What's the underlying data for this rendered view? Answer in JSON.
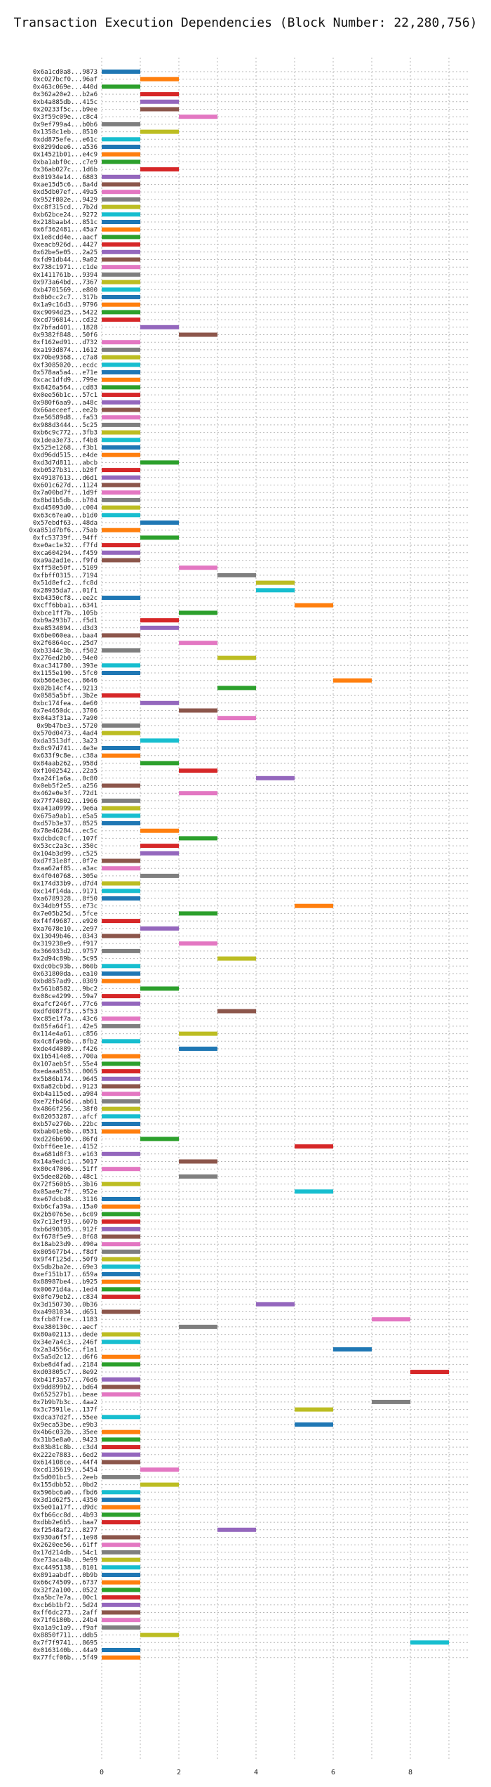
{
  "chart_data": {
    "type": "gantt",
    "title": "Transaction Execution Dependencies (Block Number: 22,280,756)",
    "xlabel": "",
    "ylabel": "",
    "xlim": [
      0,
      9.5
    ],
    "x_ticks": [
      0,
      2,
      4,
      6,
      8
    ],
    "grid": true,
    "colors": [
      "#1f77b4",
      "#ff7f0e",
      "#2ca02c",
      "#d62728",
      "#9467bd",
      "#8c564b",
      "#e377c2",
      "#7f7f7f",
      "#bcbd22",
      "#17becf"
    ],
    "transactions": [
      {
        "label": "0x6a1cd0a8...9873",
        "start": 0
      },
      {
        "label": "0xc027bcf0...96af",
        "start": 1
      },
      {
        "label": "0x463c069e...440d",
        "start": 0
      },
      {
        "label": "0x362a20e2...b2a6",
        "start": 1
      },
      {
        "label": "0xb4a885db...415c",
        "start": 1
      },
      {
        "label": "0x20233f5c...b9ee",
        "start": 1
      },
      {
        "label": "0x3f59c09e...c8c4",
        "start": 2
      },
      {
        "label": "0x9ef799a4...b0b6",
        "start": 0
      },
      {
        "label": "0x1358c1eb...8510",
        "start": 1
      },
      {
        "label": "0xdd875efe...e61c",
        "start": 0
      },
      {
        "label": "0x0299dee6...a536",
        "start": 0
      },
      {
        "label": "0x14521b01...e4c9",
        "start": 0
      },
      {
        "label": "0xba1abf0c...c7e9",
        "start": 0
      },
      {
        "label": "0x36ab027c...1d6b",
        "start": 1
      },
      {
        "label": "0x01934e14...6883",
        "start": 0
      },
      {
        "label": "0xae15d5c6...8a4d",
        "start": 0
      },
      {
        "label": "0xd5db07ef...49a5",
        "start": 0
      },
      {
        "label": "0x952f802e...9429",
        "start": 0
      },
      {
        "label": "0xc8f315cd...7b2d",
        "start": 0
      },
      {
        "label": "0xb62bce24...9272",
        "start": 0
      },
      {
        "label": "0x218baab4...851c",
        "start": 0
      },
      {
        "label": "0x6f362481...45a7",
        "start": 0
      },
      {
        "label": "0x1e8cdd4e...aacf",
        "start": 0
      },
      {
        "label": "0xeacb926d...4427",
        "start": 0
      },
      {
        "label": "0x62be5e05...2a25",
        "start": 0
      },
      {
        "label": "0xfd91db44...9a02",
        "start": 0
      },
      {
        "label": "0x738c1971...c1de",
        "start": 0
      },
      {
        "label": "0x1411761b...9394",
        "start": 0
      },
      {
        "label": "0x973a64bd...7367",
        "start": 0
      },
      {
        "label": "0xb4701569...e800",
        "start": 0
      },
      {
        "label": "0x0b0cc2c7...317b",
        "start": 0
      },
      {
        "label": "0x1a9c16d3...9796",
        "start": 0
      },
      {
        "label": "0xc9094d25...5422",
        "start": 0
      },
      {
        "label": "0xcd796814...cd32",
        "start": 0
      },
      {
        "label": "0x7bfad401...1828",
        "start": 1
      },
      {
        "label": "0x9382f848...50f6",
        "start": 2
      },
      {
        "label": "0xf162ed91...d732",
        "start": 0
      },
      {
        "label": "0xa193d874...1612",
        "start": 0
      },
      {
        "label": "0x70be9368...c7a8",
        "start": 0
      },
      {
        "label": "0xf3085020...ecdc",
        "start": 0
      },
      {
        "label": "0x578aa5a4...e71e",
        "start": 0
      },
      {
        "label": "0xcac1dfd9...799e",
        "start": 0
      },
      {
        "label": "0x8426a564...cd83",
        "start": 0
      },
      {
        "label": "0x0ee56b1c...57c1",
        "start": 0
      },
      {
        "label": "0x980f6aa9...a48c",
        "start": 0
      },
      {
        "label": "0x66aeceef...ee2b",
        "start": 0
      },
      {
        "label": "0xe56589d8...fa53",
        "start": 0
      },
      {
        "label": "0x988d3444...5c25",
        "start": 0
      },
      {
        "label": "0xb6c9c772...3fb3",
        "start": 0
      },
      {
        "label": "0x1dea3e73...f4b8",
        "start": 0
      },
      {
        "label": "0x525e1268...f3b1",
        "start": 0
      },
      {
        "label": "0xd96dd515...e4de",
        "start": 0
      },
      {
        "label": "0xd3d7d811...abcb",
        "start": 1
      },
      {
        "label": "0xb0527b31...b20f",
        "start": 0
      },
      {
        "label": "0x49187613...d6d1",
        "start": 0
      },
      {
        "label": "0x601c627d...1124",
        "start": 0
      },
      {
        "label": "0x7a00bd7f...1d9f",
        "start": 0
      },
      {
        "label": "0x8bd1b5db...b704",
        "start": 0
      },
      {
        "label": "0xd45093d0...c004",
        "start": 0
      },
      {
        "label": "0x63c67ea0...b1d0",
        "start": 0
      },
      {
        "label": "0x57ebdf63...48da",
        "start": 1
      },
      {
        "label": "0xa851d7bf6...75ab",
        "start": 0
      },
      {
        "label": "0xfc53739f...94ff",
        "start": 1
      },
      {
        "label": "0xe0ac1e32...f7fd",
        "start": 0
      },
      {
        "label": "0xca604294...f459",
        "start": 0
      },
      {
        "label": "0xa9a2ad1e...f9fd",
        "start": 0
      },
      {
        "label": "0xff58e50f...5109",
        "start": 2
      },
      {
        "label": "0xfbff0315...7194",
        "start": 3
      },
      {
        "label": "0x51d8efc2...fc8d",
        "start": 4
      },
      {
        "label": "0x28935da7...01f1",
        "start": 4
      },
      {
        "label": "0xb4350cf8...ee2c",
        "start": 0
      },
      {
        "label": "0xcff6bba1...6341",
        "start": 5
      },
      {
        "label": "0xbce1ff7b...105b",
        "start": 2
      },
      {
        "label": "0xb9a293b7...f5d1",
        "start": 1
      },
      {
        "label": "0xe8534894...d3d3",
        "start": 1
      },
      {
        "label": "0x6be060ea...baa4",
        "start": 0
      },
      {
        "label": "0x2f6864ec...25d7",
        "start": 2
      },
      {
        "label": "0xb3344c3b...f502",
        "start": 0
      },
      {
        "label": "0x276ed2b0...94e0",
        "start": 3
      },
      {
        "label": "0xac341780...393e",
        "start": 0
      },
      {
        "label": "0x1155e190...5fc0",
        "start": 0
      },
      {
        "label": "0xb566e3ec...8646",
        "start": 6
      },
      {
        "label": "0x02b14cf4...9213",
        "start": 3
      },
      {
        "label": "0x0585a5bf...3b2e",
        "start": 0
      },
      {
        "label": "0xbc174fea...4e60",
        "start": 1
      },
      {
        "label": "0x7e4650dc...3706",
        "start": 2
      },
      {
        "label": "0x04a3f31a...7a90",
        "start": 3
      },
      {
        "label": "0x9b47be3...5720",
        "start": 0
      },
      {
        "label": "0x570d0473...4ad4",
        "start": 0
      },
      {
        "label": "0xda3513df...3a23",
        "start": 1
      },
      {
        "label": "0x8c97d741...4e3e",
        "start": 0
      },
      {
        "label": "0x633f9c8e...c38a",
        "start": 0
      },
      {
        "label": "0x84aab262...958d",
        "start": 1
      },
      {
        "label": "0xf1002542...22a5",
        "start": 2
      },
      {
        "label": "0xa24f1a6a...0c80",
        "start": 4
      },
      {
        "label": "0x0eb5f2e5...a256",
        "start": 0
      },
      {
        "label": "0x462e0e3f...72d1",
        "start": 2
      },
      {
        "label": "0x77f74802...1966",
        "start": 0
      },
      {
        "label": "0xa41a0999...9e6a",
        "start": 0
      },
      {
        "label": "0x675a9ab1...e5a5",
        "start": 0
      },
      {
        "label": "0xd57b3e37...8525",
        "start": 0
      },
      {
        "label": "0x78e46284...ec5c",
        "start": 1
      },
      {
        "label": "0xdcbdc0cf...107f",
        "start": 2
      },
      {
        "label": "0x53cc2a3c...350c",
        "start": 1
      },
      {
        "label": "0x104b3d99...c525",
        "start": 1
      },
      {
        "label": "0xd7f31e8f...0f7e",
        "start": 0
      },
      {
        "label": "0xaa62af85...a3ac",
        "start": 0
      },
      {
        "label": "0x4f040768...305e",
        "start": 1
      },
      {
        "label": "0x174d33b9...d7d4",
        "start": 0
      },
      {
        "label": "0xc14f14da...9171",
        "start": 0
      },
      {
        "label": "0xa6789328...8f50",
        "start": 0
      },
      {
        "label": "0x34db9f55...e73c",
        "start": 5
      },
      {
        "label": "0x7e05b25d...5fce",
        "start": 2
      },
      {
        "label": "0xf4f49687...e920",
        "start": 0
      },
      {
        "label": "0xa7678e10...2e97",
        "start": 1
      },
      {
        "label": "0x13049b46...0343",
        "start": 0
      },
      {
        "label": "0x319238e9...f917",
        "start": 2
      },
      {
        "label": "0x366933d2...9757",
        "start": 0
      },
      {
        "label": "0x2d94c89b...5c95",
        "start": 3
      },
      {
        "label": "0xdc0bc93b...860b",
        "start": 0
      },
      {
        "label": "0x631800da...ea10",
        "start": 0
      },
      {
        "label": "0xbd857ad9...0309",
        "start": 0
      },
      {
        "label": "0x561b8582...9bc2",
        "start": 1
      },
      {
        "label": "0x08ce4299...59a7",
        "start": 0
      },
      {
        "label": "0xafcf246f...77c6",
        "start": 0
      },
      {
        "label": "0xdfd087f3...5f53",
        "start": 3
      },
      {
        "label": "0xc85e1f7a...43c6",
        "start": 0
      },
      {
        "label": "0x85fa64f1...42e5",
        "start": 0
      },
      {
        "label": "0x114e4a61...c856",
        "start": 2
      },
      {
        "label": "0x4c8fa96b...8fb2",
        "start": 0
      },
      {
        "label": "0xde4d4089...f426",
        "start": 2
      },
      {
        "label": "0x1b5414e8...700a",
        "start": 0
      },
      {
        "label": "0x107aeb5f...55e4",
        "start": 0
      },
      {
        "label": "0xedaaa853...0065",
        "start": 0
      },
      {
        "label": "0x5b86b174...9645",
        "start": 0
      },
      {
        "label": "0x8a82cbbd...9123",
        "start": 0
      },
      {
        "label": "0xb4a115ed...a984",
        "start": 0
      },
      {
        "label": "0xe72fb46d...ab61",
        "start": 0
      },
      {
        "label": "0x4866f256...38f0",
        "start": 0
      },
      {
        "label": "0x82053287...afcf",
        "start": 0
      },
      {
        "label": "0xb57e276b...22bc",
        "start": 0
      },
      {
        "label": "0xbab01e6b...0531",
        "start": 0
      },
      {
        "label": "0xd226b690...86fd",
        "start": 1
      },
      {
        "label": "0xbff6ee1e...4152",
        "start": 5
      },
      {
        "label": "0xa681d8f3...e163",
        "start": 0
      },
      {
        "label": "0x14a9edc1...5017",
        "start": 2
      },
      {
        "label": "0x80c47006...51ff",
        "start": 0
      },
      {
        "label": "0x5dee826b...48c1",
        "start": 2
      },
      {
        "label": "0x72f560b5...3b16",
        "start": 0
      },
      {
        "label": "0x05ae9c7f...952e",
        "start": 5
      },
      {
        "label": "0xe67dcbd8...3116",
        "start": 0
      },
      {
        "label": "0xb6cfa39a...15a0",
        "start": 0
      },
      {
        "label": "0x2b50765e...6c09",
        "start": 0
      },
      {
        "label": "0x7c13ef93...607b",
        "start": 0
      },
      {
        "label": "0xb6d90305...912f",
        "start": 0
      },
      {
        "label": "0xf678f5e9...8f68",
        "start": 0
      },
      {
        "label": "0x18ab23d9...490a",
        "start": 0
      },
      {
        "label": "0x805677b4...f8df",
        "start": 0
      },
      {
        "label": "0x9f4f125d...50f9",
        "start": 0
      },
      {
        "label": "0x5db2ba2e...69e3",
        "start": 0
      },
      {
        "label": "0xef151b17...659a",
        "start": 0
      },
      {
        "label": "0x88987be4...b925",
        "start": 0
      },
      {
        "label": "0x00671d4a...1ed4",
        "start": 0
      },
      {
        "label": "0x0fe79eb2...c834",
        "start": 0
      },
      {
        "label": "0x3d150730...0b36",
        "start": 4
      },
      {
        "label": "0xa4981034...d651",
        "start": 0
      },
      {
        "label": "0xfcb87fce...1183",
        "start": 7
      },
      {
        "label": "0xe380130c...aecf",
        "start": 2
      },
      {
        "label": "0x80a02113...dede",
        "start": 0
      },
      {
        "label": "0x34e7a4c3...246f",
        "start": 0
      },
      {
        "label": "0x2a34556c...f1a1",
        "start": 6
      },
      {
        "label": "0x5a5d2c12...d6f6",
        "start": 0
      },
      {
        "label": "0xbe8d4fad...2184",
        "start": 0
      },
      {
        "label": "0xd03805c7...8e92",
        "start": 8
      },
      {
        "label": "0xb41f3a57...76d6",
        "start": 0
      },
      {
        "label": "0x9dd899b2...bd64",
        "start": 0
      },
      {
        "label": "0x652527b1...beae",
        "start": 0
      },
      {
        "label": "0x7b9b7b3c...4aa2",
        "start": 7
      },
      {
        "label": "0x3c7591le...137f",
        "start": 5
      },
      {
        "label": "0xdca37d2f...55ee",
        "start": 0
      },
      {
        "label": "0x9eca53be...e9b3",
        "start": 5
      },
      {
        "label": "0x4b6c032b...35ee",
        "start": 0
      },
      {
        "label": "0x31b5e8a0...9423",
        "start": 0
      },
      {
        "label": "0x83b81c8b...c3d4",
        "start": 0
      },
      {
        "label": "0x222e7883...6ed2",
        "start": 0
      },
      {
        "label": "0x614108ce...44f4",
        "start": 0
      },
      {
        "label": "0xcd135619...5454",
        "start": 1
      },
      {
        "label": "0x5d001bc5...2eeb",
        "start": 0
      },
      {
        "label": "0x155dbb52...0bd2",
        "start": 1
      },
      {
        "label": "0x596bc6a0...fbd6",
        "start": 0
      },
      {
        "label": "0x3d1d62f5...4350",
        "start": 0
      },
      {
        "label": "0x5e01a17f...d9dc",
        "start": 0
      },
      {
        "label": "0xfb66cc8d...4b93",
        "start": 0
      },
      {
        "label": "0xdbb2e6b5...baa7",
        "start": 0
      },
      {
        "label": "0xf2548af2...8277",
        "start": 3
      },
      {
        "label": "0x930a6f5f...1e98",
        "start": 0
      },
      {
        "label": "0x2620ee56...61ff",
        "start": 0
      },
      {
        "label": "0x17d214db...54c1",
        "start": 0
      },
      {
        "label": "0xe73aca4b...9e99",
        "start": 0
      },
      {
        "label": "0xc4495138...8101",
        "start": 0
      },
      {
        "label": "0x891aabdf...0b9b",
        "start": 0
      },
      {
        "label": "0x66c74509...6737",
        "start": 0
      },
      {
        "label": "0x32f2a100...0522",
        "start": 0
      },
      {
        "label": "0xa5bc7e7a...00c1",
        "start": 0
      },
      {
        "label": "0xcb6b1bf2...5d24",
        "start": 0
      },
      {
        "label": "0xff6dc273...2aff",
        "start": 0
      },
      {
        "label": "0x71f6180b...24b4",
        "start": 0
      },
      {
        "label": "0xa1a9c1a9...f9af",
        "start": 0
      },
      {
        "label": "0x8850f711...ddb5",
        "start": 1
      },
      {
        "label": "0x7f7f9741...8695",
        "start": 8
      },
      {
        "label": "0x0163140b...44a9",
        "start": 0
      },
      {
        "label": "0x77fcf06b...5f49",
        "start": 0
      }
    ]
  }
}
